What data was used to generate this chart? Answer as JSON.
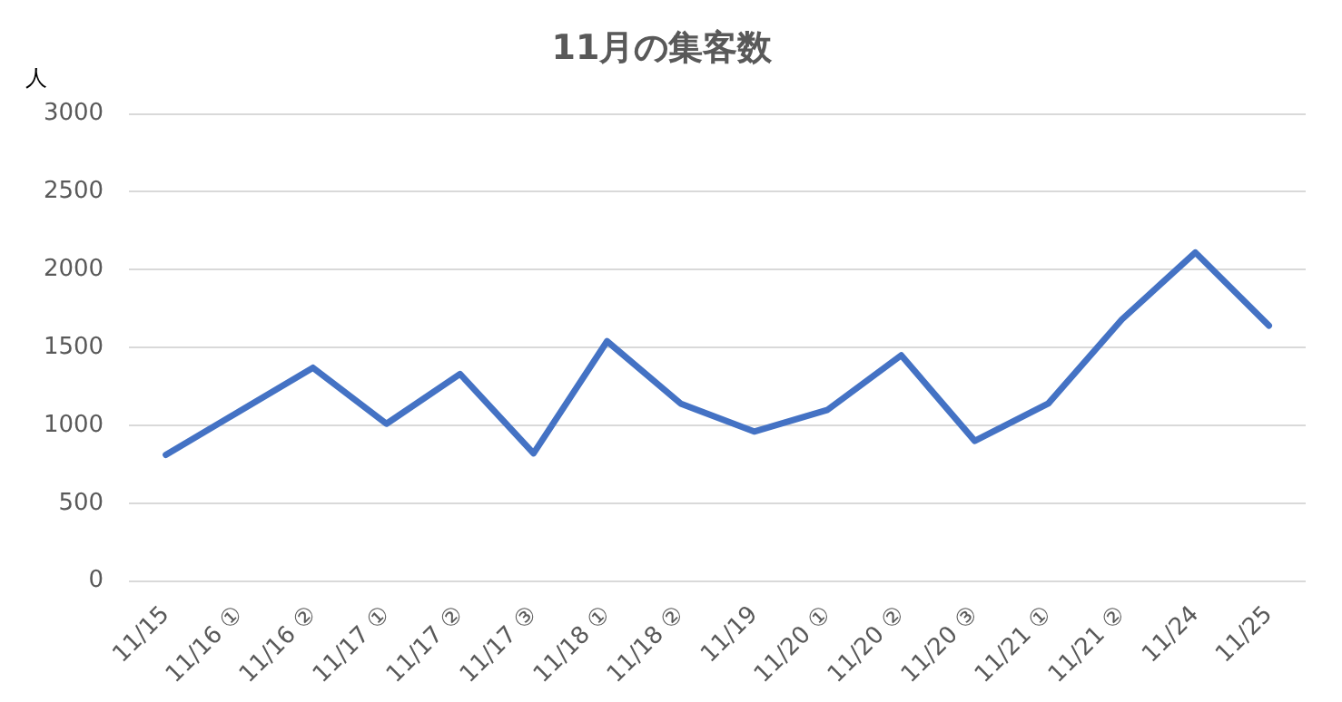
{
  "chart_data": {
    "type": "line",
    "title": "11月の集客数",
    "ylabel": "人",
    "categories": [
      "11/15",
      "11/16 ①",
      "11/16 ②",
      "11/17 ①",
      "11/17 ②",
      "11/17 ③",
      "11/18 ①",
      "11/18 ②",
      "11/19",
      "11/20 ①",
      "11/20 ②",
      "11/20 ③",
      "11/21 ①",
      "11/21 ②",
      "11/24",
      "11/25"
    ],
    "series": [
      {
        "color": "#4472c4",
        "values": [
          810,
          1090,
          1370,
          1010,
          1330,
          820,
          1540,
          1140,
          960,
          1100,
          1450,
          900,
          1140,
          1680,
          2110,
          1640
        ]
      }
    ],
    "ylim": [
      0,
      3000
    ],
    "yticks": [
      0,
      500,
      1000,
      1500,
      2000,
      2500,
      3000
    ],
    "grid": "y",
    "legend": false,
    "marker": "none",
    "line_style": "solid"
  }
}
